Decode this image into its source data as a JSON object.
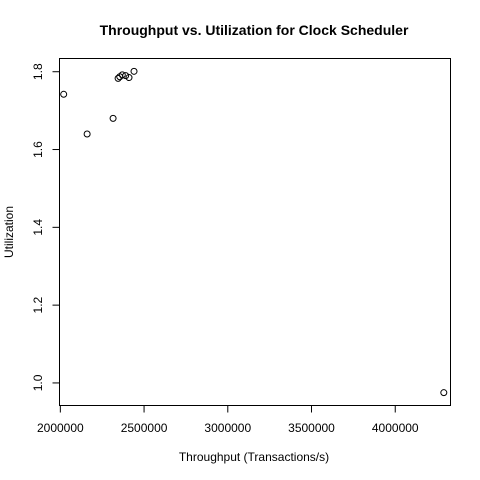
{
  "chart_data": {
    "type": "scatter",
    "title": "Throughput vs. Utilization for Clock Scheduler",
    "xlabel": "Throughput (Transactions/s)",
    "ylabel": "Utilization",
    "xlim": [
      1995000,
      4330000
    ],
    "ylim": [
      0.942,
      1.834
    ],
    "x_ticks": [
      2000000,
      2500000,
      3000000,
      3500000,
      4000000
    ],
    "x_tick_labels": [
      "2000000",
      "2500000",
      "3000000",
      "3500000",
      "4000000"
    ],
    "y_ticks": [
      1.0,
      1.2,
      1.4,
      1.6,
      1.8
    ],
    "y_tick_labels": [
      "1.0",
      "1.2",
      "1.4",
      "1.6",
      "1.8"
    ],
    "grid": false,
    "legend": false,
    "point_style": "open-circle",
    "points": [
      {
        "x": 2020000,
        "y": 1.742
      },
      {
        "x": 2160000,
        "y": 1.64
      },
      {
        "x": 2315000,
        "y": 1.68
      },
      {
        "x": 2345000,
        "y": 1.783
      },
      {
        "x": 2355000,
        "y": 1.787
      },
      {
        "x": 2370000,
        "y": 1.792
      },
      {
        "x": 2390000,
        "y": 1.79
      },
      {
        "x": 2410000,
        "y": 1.785
      },
      {
        "x": 2440000,
        "y": 1.801
      },
      {
        "x": 4290000,
        "y": 0.975
      }
    ]
  }
}
